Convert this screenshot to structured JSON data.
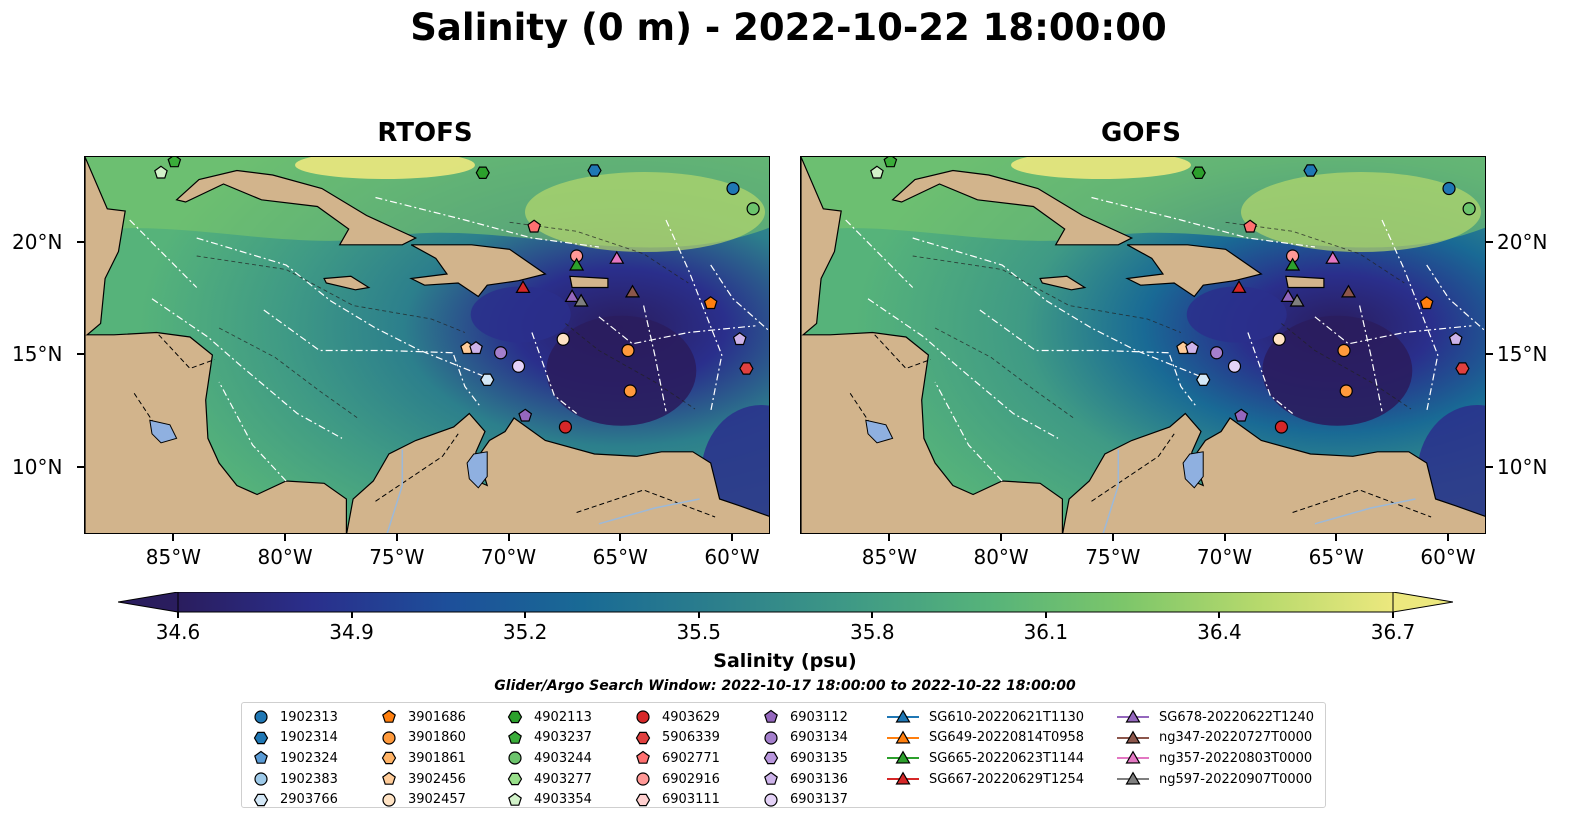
{
  "title": "Salinity (0 m) - 2022-10-22 18:00:00",
  "panels": [
    {
      "title": "RTOFS",
      "variant": "rtofs"
    },
    {
      "title": "GOFS",
      "variant": "gofs"
    }
  ],
  "axes": {
    "lon_ticks": [
      "85°W",
      "80°W",
      "75°W",
      "70°W",
      "65°W",
      "60°W"
    ],
    "lat_ticks": [
      "20°N",
      "15°N",
      "10°N"
    ],
    "lon_range": [
      -89,
      -58.3
    ],
    "lat_range": [
      7.0,
      23.8
    ]
  },
  "colorbar": {
    "ticks": [
      "34.6",
      "34.9",
      "35.2",
      "35.5",
      "35.8",
      "36.1",
      "36.4",
      "36.7"
    ],
    "range": [
      34.6,
      36.7
    ],
    "extend": "both",
    "label": "Salinity (psu)",
    "colors": [
      "#2a1d5e",
      "#2a2f8c",
      "#1d4f9a",
      "#196a95",
      "#2c7f8c",
      "#3f9a85",
      "#56b37a",
      "#7cc66a",
      "#b6d96c",
      "#ece87e"
    ]
  },
  "search_window": "Glider/Argo Search Window: 2022-10-17 18:00:00 to 2022-10-22 18:00:00",
  "colors": {
    "land": "#d2b48c",
    "lakes": "#8fb0e0",
    "rivers": "#9cb9d9",
    "eez": "#ffffff"
  },
  "legend": [
    [
      {
        "label": "1902313",
        "marker": "circle",
        "color": "#1f77b4"
      },
      {
        "label": "1902314",
        "marker": "hexagon",
        "color": "#1f77b4"
      },
      {
        "label": "1902324",
        "marker": "pentagon",
        "color": "#5a9bd5"
      },
      {
        "label": "1902383",
        "marker": "circle",
        "color": "#9ecae9"
      },
      {
        "label": "2903766",
        "marker": "hexagon",
        "color": "#d4e8f7"
      }
    ],
    [
      {
        "label": "3901686",
        "marker": "pentagon",
        "color": "#ff7f0e"
      },
      {
        "label": "3901860",
        "marker": "circle",
        "color": "#ff9a3c"
      },
      {
        "label": "3901861",
        "marker": "hexagon",
        "color": "#ffb366"
      },
      {
        "label": "3902456",
        "marker": "pentagon",
        "color": "#ffcc99"
      },
      {
        "label": "3902457",
        "marker": "circle",
        "color": "#ffe3c4"
      }
    ],
    [
      {
        "label": "4902113",
        "marker": "hexagon",
        "color": "#2ca02c"
      },
      {
        "label": "4903237",
        "marker": "pentagon",
        "color": "#3aad3a"
      },
      {
        "label": "4903244",
        "marker": "circle",
        "color": "#6cc46c"
      },
      {
        "label": "4903277",
        "marker": "hexagon",
        "color": "#98df8a"
      },
      {
        "label": "4903354",
        "marker": "pentagon",
        "color": "#d2f2c9"
      }
    ],
    [
      {
        "label": "4903629",
        "marker": "circle",
        "color": "#d62728"
      },
      {
        "label": "5906339",
        "marker": "hexagon",
        "color": "#e0403f"
      },
      {
        "label": "6902771",
        "marker": "pentagon",
        "color": "#ff7070"
      },
      {
        "label": "6902916",
        "marker": "circle",
        "color": "#ff9896"
      },
      {
        "label": "6903111",
        "marker": "hexagon",
        "color": "#ffd0cf"
      }
    ],
    [
      {
        "label": "6903112",
        "marker": "pentagon",
        "color": "#9467bd"
      },
      {
        "label": "6903134",
        "marker": "circle",
        "color": "#a47fcc"
      },
      {
        "label": "6903135",
        "marker": "hexagon",
        "color": "#b896dc"
      },
      {
        "label": "6903136",
        "marker": "pentagon",
        "color": "#cdb3ea"
      },
      {
        "label": "6903137",
        "marker": "circle",
        "color": "#e4d2f7"
      }
    ],
    [
      {
        "label": "SG610-20220621T1130",
        "marker": "triangle",
        "color": "#1f77b4"
      },
      {
        "label": "SG649-20220814T0958",
        "marker": "triangle",
        "color": "#ff7f0e"
      },
      {
        "label": "SG665-20220623T1144",
        "marker": "triangle",
        "color": "#2ca02c"
      },
      {
        "label": "SG667-20220629T1254",
        "marker": "triangle",
        "color": "#d62728"
      }
    ],
    [
      {
        "label": "SG678-20220622T1240",
        "marker": "triangle",
        "color": "#9467bd"
      },
      {
        "label": "ng347-20220727T0000",
        "marker": "triangle",
        "color": "#8c564b"
      },
      {
        "label": "ng357-20220803T0000",
        "marker": "triangle",
        "color": "#e377c2"
      },
      {
        "label": "ng597-20220907T0000",
        "marker": "triangle",
        "color": "#7f7f7f"
      }
    ]
  ],
  "markers": [
    {
      "label": "1902313",
      "lon": -60.0,
      "lat": 22.4
    },
    {
      "label": "1902314",
      "lon": -66.2,
      "lat": 23.2
    },
    {
      "label": "4903244",
      "lon": -59.1,
      "lat": 21.5
    },
    {
      "label": "4902113",
      "lon": -71.2,
      "lat": 23.1
    },
    {
      "label": "4903237",
      "lon": -85.0,
      "lat": 23.6
    },
    {
      "label": "4903354",
      "lon": -85.6,
      "lat": 23.1
    },
    {
      "label": "6902771",
      "lon": -68.9,
      "lat": 20.7
    },
    {
      "label": "6902916",
      "lon": -67.0,
      "lat": 19.4
    },
    {
      "label": "SG665-20220623T1144",
      "lon": -67.0,
      "lat": 19.0
    },
    {
      "label": "ng357-20220803T0000",
      "lon": -65.2,
      "lat": 19.3
    },
    {
      "label": "SG667-20220629T1254",
      "lon": -69.4,
      "lat": 18.0
    },
    {
      "label": "ng347-20220727T0000",
      "lon": -64.5,
      "lat": 17.8
    },
    {
      "label": "SG678-20220622T1240",
      "lon": -67.2,
      "lat": 17.6
    },
    {
      "label": "ng597-20220907T0000",
      "lon": -66.8,
      "lat": 17.4
    },
    {
      "label": "3901686",
      "lon": -61.0,
      "lat": 17.3
    },
    {
      "label": "6903136",
      "lon": -59.7,
      "lat": 15.7
    },
    {
      "label": "5906339",
      "lon": -59.4,
      "lat": 14.4
    },
    {
      "label": "3902457",
      "lon": -67.6,
      "lat": 15.7
    },
    {
      "label": "3901860",
      "lon": -64.7,
      "lat": 15.2
    },
    {
      "label": "3901860",
      "lon": -64.6,
      "lat": 13.4
    },
    {
      "label": "3902456",
      "lon": -71.9,
      "lat": 15.3
    },
    {
      "label": "6903136",
      "lon": -71.5,
      "lat": 15.3
    },
    {
      "label": "6903134",
      "lon": -70.4,
      "lat": 15.1
    },
    {
      "label": "6903137",
      "lon": -69.6,
      "lat": 14.5
    },
    {
      "label": "2903766",
      "lon": -71.0,
      "lat": 13.9
    },
    {
      "label": "6903112",
      "lon": -69.3,
      "lat": 12.3
    },
    {
      "label": "4903629",
      "lon": -67.5,
      "lat": 11.8
    }
  ]
}
